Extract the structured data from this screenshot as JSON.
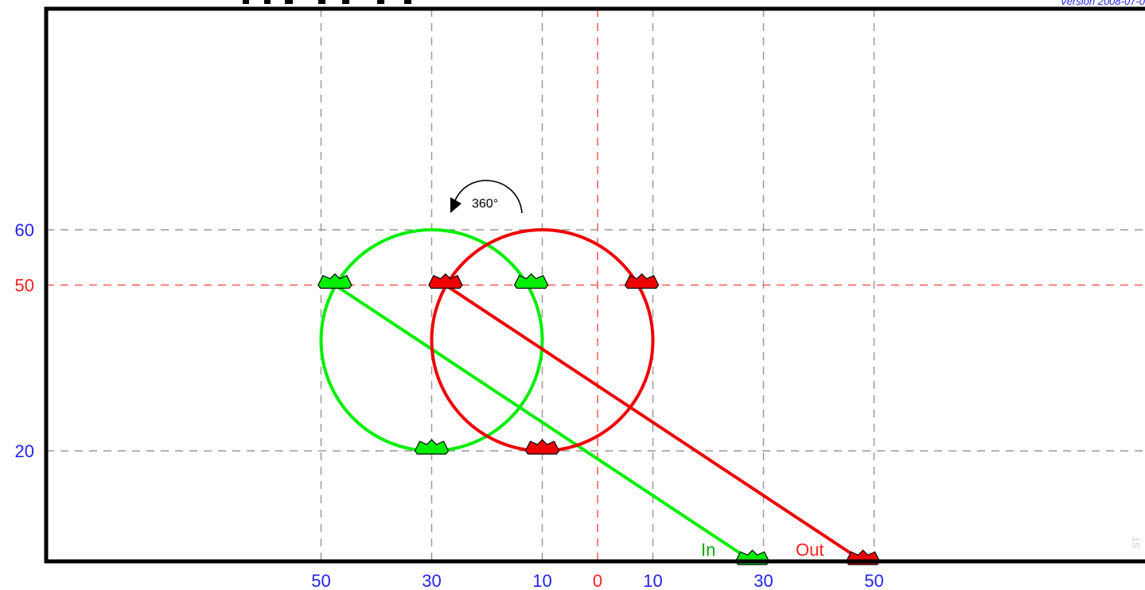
{
  "header": {
    "version_text": "Version 2008-07-0"
  },
  "watermark": "ST",
  "colors": {
    "in": "#00ee00",
    "out": "#ee0000",
    "grid": "#999999",
    "zero_line": "#ff5555",
    "tick_blue": "#2222ee",
    "tick_red": "#ff2222",
    "frame": "#000000"
  },
  "rotation_label": "360°",
  "diagram": {
    "x_axis_ticks": [
      {
        "label": "50",
        "value": -50,
        "color": "blue"
      },
      {
        "label": "30",
        "value": -30,
        "color": "blue"
      },
      {
        "label": "10",
        "value": -10,
        "color": "blue"
      },
      {
        "label": "0",
        "value": 0,
        "color": "red"
      },
      {
        "label": "10",
        "value": 10,
        "color": "blue"
      },
      {
        "label": "30",
        "value": 30,
        "color": "blue"
      },
      {
        "label": "50",
        "value": 50,
        "color": "blue"
      }
    ],
    "y_axis_ticks": [
      {
        "label": "60",
        "value": 60,
        "color": "blue"
      },
      {
        "label": "50",
        "value": 50,
        "color": "red"
      },
      {
        "label": "20",
        "value": 20,
        "color": "blue"
      }
    ],
    "in": {
      "label": "In",
      "circle_center": [
        -30,
        40
      ],
      "circle_radius": 20,
      "line_start": [
        -47.5,
        50
      ],
      "line_end": [
        28,
        0
      ],
      "markers": [
        [
          -47.5,
          50
        ],
        [
          -12,
          50
        ],
        [
          -30,
          20
        ],
        [
          28,
          0
        ]
      ]
    },
    "out": {
      "label": "Out",
      "circle_center": [
        -10,
        40
      ],
      "circle_radius": 20,
      "line_start": [
        -27.5,
        50
      ],
      "line_end": [
        48,
        0
      ],
      "markers": [
        [
          -27.5,
          50
        ],
        [
          8,
          50
        ],
        [
          -10,
          20
        ],
        [
          48,
          0
        ]
      ]
    }
  }
}
